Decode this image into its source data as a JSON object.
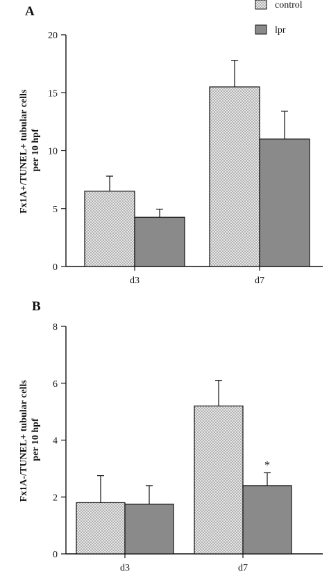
{
  "chart_data": [
    {
      "type": "bar",
      "panel_label": "A",
      "ylabel": [
        "Fx1A+/TUNEL+ tubular cells",
        "per 10 hpf"
      ],
      "categories": [
        "d3",
        "d7"
      ],
      "ylim": [
        0,
        20
      ],
      "yticks": [
        "0",
        "5",
        "10",
        "15",
        "20"
      ],
      "series": [
        {
          "name": "control",
          "values": [
            6.5,
            15.5
          ],
          "errors": [
            1.3,
            2.3
          ]
        },
        {
          "name": "lpr",
          "values": [
            4.25,
            11.0
          ],
          "errors": [
            0.7,
            2.4
          ]
        }
      ],
      "legend": {
        "entries": [
          "control",
          "lpr"
        ],
        "placement": "top-right"
      },
      "annotations": [],
      "grid": false
    },
    {
      "type": "bar",
      "panel_label": "B",
      "ylabel": [
        "Fx1A-/TUNEL+ tubular cells",
        "per 10 hpf"
      ],
      "categories": [
        "d3",
        "d7"
      ],
      "ylim": [
        0,
        8
      ],
      "yticks": [
        "0",
        "2",
        "4",
        "6",
        "8"
      ],
      "series": [
        {
          "name": "control",
          "values": [
            1.8,
            5.2
          ],
          "errors": [
            0.95,
            0.9
          ]
        },
        {
          "name": "lpr",
          "values": [
            1.75,
            2.4
          ],
          "errors": [
            0.65,
            0.45
          ]
        }
      ],
      "annotations": [
        {
          "text": "*",
          "category": "d7",
          "series": "lpr"
        }
      ],
      "grid": false
    }
  ],
  "colors": {
    "control_fill": "#e6e6e6",
    "control_dot": "#6e6e6e",
    "lpr_fill": "#8a8a8a",
    "axis": "#111111"
  }
}
